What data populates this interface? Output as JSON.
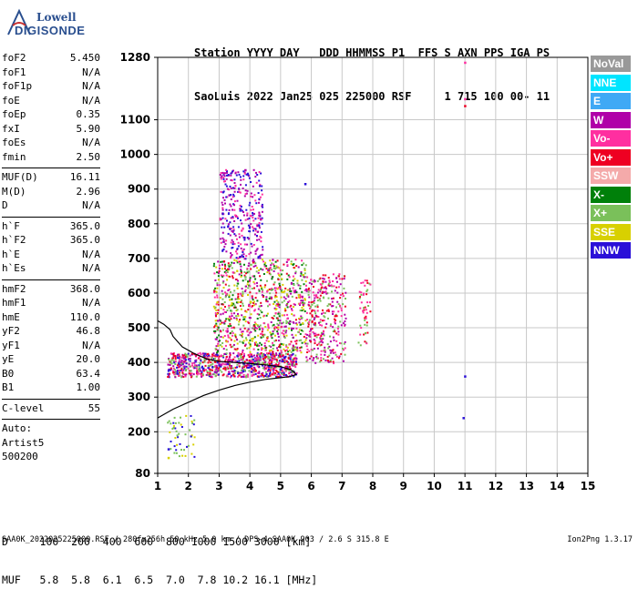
{
  "logo": {
    "line1": "Lowell",
    "line2": "DIGISONDE"
  },
  "header": {
    "line1": "Station YYYY DAY   DDD HHMMSS P1  FFS S AXN PPS IGA PS",
    "line2": "SaoLuis 2022 Jan25 025 225000 RSF     1 715 100 00- 11"
  },
  "params": {
    "group1": [
      {
        "key": "foF2",
        "value": "5.450"
      },
      {
        "key": "foF1",
        "value": "N/A"
      },
      {
        "key": "foF1p",
        "value": "N/A"
      },
      {
        "key": "foE",
        "value": "N/A"
      },
      {
        "key": "foEp",
        "value": "0.35"
      },
      {
        "key": "fxI",
        "value": "5.90"
      },
      {
        "key": "foEs",
        "value": "N/A"
      },
      {
        "key": "fmin",
        "value": "2.50"
      }
    ],
    "group2": [
      {
        "key": "MUF(D)",
        "value": "16.11"
      },
      {
        "key": "M(D)",
        "value": "2.96"
      },
      {
        "key": "D",
        "value": "N/A"
      }
    ],
    "group3": [
      {
        "key": "h`F",
        "value": "365.0"
      },
      {
        "key": "h`F2",
        "value": "365.0"
      },
      {
        "key": "h`E",
        "value": "N/A"
      },
      {
        "key": "h`Es",
        "value": "N/A"
      }
    ],
    "group4": [
      {
        "key": "hmF2",
        "value": "368.0"
      },
      {
        "key": "hmF1",
        "value": "N/A"
      },
      {
        "key": "hmE",
        "value": "110.0"
      },
      {
        "key": "yF2",
        "value": "46.8"
      },
      {
        "key": "yF1",
        "value": "N/A"
      },
      {
        "key": "yE",
        "value": "20.0"
      },
      {
        "key": "B0",
        "value": "63.4"
      },
      {
        "key": "B1",
        "value": "1.00"
      }
    ],
    "group5": [
      {
        "key": "C-level",
        "value": "55"
      }
    ],
    "group6": [
      "Auto:",
      "Artist5",
      "500200"
    ]
  },
  "legend": [
    {
      "label": "NoVal",
      "color": "#999999"
    },
    {
      "label": "NNE",
      "color": "#00e5ff"
    },
    {
      "label": "E",
      "color": "#3fa9f5"
    },
    {
      "label": "W",
      "color": "#b000a8"
    },
    {
      "label": "Vo-",
      "color": "#ff2fa0"
    },
    {
      "label": "Vo+",
      "color": "#ee0022"
    },
    {
      "label": "SSW",
      "color": "#f4aaaa"
    },
    {
      "label": "X-",
      "color": "#00800a"
    },
    {
      "label": "X+",
      "color": "#7ac05a"
    },
    {
      "label": "SSE",
      "color": "#d8d000"
    },
    {
      "label": "NNW",
      "color": "#2a10d8"
    }
  ],
  "bottom_table": {
    "line1": "D     100  200  400  600  800 1000 1500 3000 [km]",
    "line2": "MUF   5.8  5.8  6.1  6.5  7.0  7.8 10.2 16.1 [MHz]"
  },
  "footer": {
    "left": "SAA0K_2022025225000.RSF / 280fx256h 50 kHz 5.0 km / DPS-4 SAA0K 903 / 2.6 S 315.8 E",
    "right": "Ion2Png 1.3.17"
  },
  "chart_data": {
    "type": "scatter",
    "title": "",
    "xlabel": "",
    "ylabel": "",
    "xlim": [
      1,
      15
    ],
    "ylim": [
      80,
      1280
    ],
    "x_ticks": [
      1,
      2,
      3,
      4,
      5,
      6,
      7,
      8,
      9,
      10,
      11,
      12,
      13,
      14,
      15
    ],
    "y_ticks": [
      80,
      200,
      300,
      400,
      500,
      600,
      700,
      800,
      900,
      1000,
      1100,
      1280
    ],
    "grid": true,
    "curves": [
      {
        "points": [
          [
            1.0,
            240
          ],
          [
            1.5,
            265
          ],
          [
            2.0,
            285
          ],
          [
            2.5,
            305
          ],
          [
            3.0,
            320
          ],
          [
            3.5,
            333
          ],
          [
            4.0,
            343
          ],
          [
            4.5,
            351
          ],
          [
            5.0,
            356
          ],
          [
            5.3,
            359
          ],
          [
            5.5,
            365
          ],
          [
            5.45,
            372
          ],
          [
            5.3,
            380
          ],
          [
            5.0,
            388
          ],
          [
            4.5,
            393
          ],
          [
            4.0,
            397
          ],
          [
            3.5,
            400
          ],
          [
            3.0,
            403
          ],
          [
            2.6,
            410
          ],
          [
            2.2,
            425
          ],
          [
            1.8,
            445
          ],
          [
            1.5,
            475
          ],
          [
            1.4,
            495
          ],
          [
            1.2,
            510
          ],
          [
            1.0,
            520
          ]
        ]
      }
    ],
    "clusters": [
      {
        "name": "lower band",
        "x": [
          1.3,
          5.5
        ],
        "y": [
          360,
          430
        ],
        "density": "high",
        "colors": [
          "Vo+",
          "W",
          "NNW",
          "Vo-",
          "X+"
        ]
      },
      {
        "name": "main spread",
        "x": [
          2.8,
          5.8
        ],
        "y": [
          430,
          700
        ],
        "density": "high",
        "colors": [
          "W",
          "Vo-",
          "Vo+",
          "X-",
          "X+",
          "SSE"
        ]
      },
      {
        "name": "upper spread",
        "x": [
          3.0,
          4.4
        ],
        "y": [
          700,
          960
        ],
        "density": "medium",
        "colors": [
          "W",
          "Vo-",
          "NNW"
        ]
      },
      {
        "name": "spread 6-7 MHz",
        "x": [
          5.8,
          7.1
        ],
        "y": [
          400,
          660
        ],
        "density": "medium",
        "colors": [
          "Vo+",
          "W",
          "Vo-",
          "X+"
        ]
      },
      {
        "name": "spread 7-8 MHz",
        "x": [
          7.5,
          7.9
        ],
        "y": [
          450,
          640
        ],
        "density": "low",
        "colors": [
          "Vo+",
          "Vo-",
          "X+"
        ]
      },
      {
        "name": "low frequency scatter",
        "x": [
          1.3,
          2.2
        ],
        "y": [
          130,
          250
        ],
        "density": "low",
        "colors": [
          "NNW",
          "SSE",
          "X+"
        ]
      }
    ],
    "isolated_points": [
      {
        "x": 11.0,
        "y": 1265,
        "color": "Vo-"
      },
      {
        "x": 11.0,
        "y": 1160,
        "color": "Vo-"
      },
      {
        "x": 11.0,
        "y": 1140,
        "color": "Vo+"
      },
      {
        "x": 11.0,
        "y": 360,
        "color": "NNW"
      },
      {
        "x": 10.95,
        "y": 240,
        "color": "NNW"
      },
      {
        "x": 5.8,
        "y": 915,
        "color": "NNW"
      },
      {
        "x": 3.85,
        "y": 955,
        "color": "W"
      },
      {
        "x": 1.35,
        "y": 150,
        "color": "NNW"
      },
      {
        "x": 1.35,
        "y": 125,
        "color": "SSE"
      }
    ]
  }
}
